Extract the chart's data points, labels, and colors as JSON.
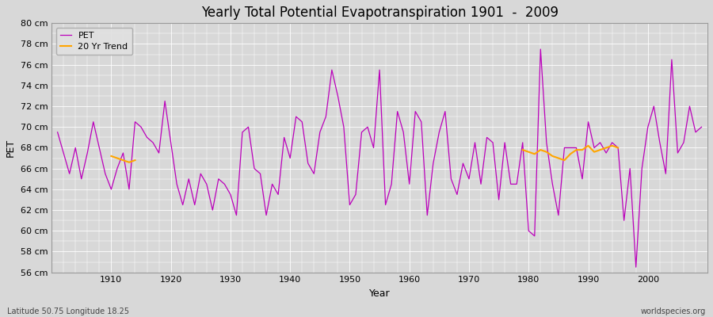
{
  "title": "Yearly Total Potential Evapotranspiration 1901  -  2009",
  "xlabel": "Year",
  "ylabel": "PET",
  "subtitle_left": "Latitude 50.75 Longitude 18.25",
  "subtitle_right": "worldspecies.org",
  "ylim": [
    56,
    80
  ],
  "xlim_left": 1900,
  "xlim_right": 2010,
  "bg_color": "#d8d8d8",
  "plot_bg_color": "#d8d8d8",
  "grid_color": "#c0c0c0",
  "pet_color": "#bb00bb",
  "trend_color": "#ffa500",
  "years": [
    1901,
    1902,
    1903,
    1904,
    1905,
    1906,
    1907,
    1908,
    1909,
    1910,
    1911,
    1912,
    1913,
    1914,
    1915,
    1916,
    1917,
    1918,
    1919,
    1920,
    1921,
    1922,
    1923,
    1924,
    1925,
    1926,
    1927,
    1928,
    1929,
    1930,
    1931,
    1932,
    1933,
    1934,
    1935,
    1936,
    1937,
    1938,
    1939,
    1940,
    1941,
    1942,
    1943,
    1944,
    1945,
    1946,
    1947,
    1948,
    1949,
    1950,
    1951,
    1952,
    1953,
    1954,
    1955,
    1956,
    1957,
    1958,
    1959,
    1960,
    1961,
    1962,
    1963,
    1964,
    1965,
    1966,
    1967,
    1968,
    1969,
    1970,
    1971,
    1972,
    1973,
    1974,
    1975,
    1976,
    1977,
    1978,
    1979,
    1980,
    1981,
    1982,
    1983,
    1984,
    1985,
    1986,
    1987,
    1988,
    1989,
    1990,
    1991,
    1992,
    1993,
    1994,
    1995,
    1996,
    1997,
    1998,
    1999,
    2000,
    2001,
    2002,
    2003,
    2004,
    2005,
    2006,
    2007,
    2008,
    2009
  ],
  "pet_values": [
    69.5,
    67.5,
    65.5,
    68.0,
    65.0,
    67.5,
    70.5,
    68.0,
    65.5,
    64.0,
    66.0,
    67.5,
    64.0,
    70.5,
    70.0,
    69.0,
    68.5,
    67.5,
    72.5,
    68.5,
    64.5,
    62.5,
    65.0,
    62.5,
    65.5,
    64.5,
    62.0,
    65.0,
    64.5,
    63.5,
    61.5,
    69.5,
    70.0,
    66.0,
    65.5,
    61.5,
    64.5,
    63.5,
    69.0,
    67.0,
    71.0,
    70.5,
    66.5,
    65.5,
    69.5,
    71.0,
    75.5,
    73.0,
    70.0,
    62.5,
    63.5,
    69.5,
    70.0,
    68.0,
    75.5,
    62.5,
    64.5,
    71.5,
    69.5,
    64.5,
    71.5,
    70.5,
    61.5,
    66.5,
    69.5,
    71.5,
    65.0,
    63.5,
    66.5,
    65.0,
    68.5,
    64.5,
    69.0,
    68.5,
    63.0,
    68.5,
    64.5,
    64.5,
    68.5,
    60.0,
    59.5,
    77.5,
    68.5,
    64.5,
    61.5,
    68.0,
    68.0,
    68.0,
    65.0,
    70.5,
    68.0,
    68.5,
    67.5,
    68.5,
    68.0,
    61.0,
    66.0,
    56.5,
    66.0,
    70.0,
    72.0,
    68.5,
    65.5,
    76.5,
    67.5,
    68.5,
    72.0,
    69.5,
    70.0
  ],
  "trend_seg1_years": [
    1910,
    1911,
    1912,
    1913,
    1914
  ],
  "trend_seg1_values": [
    67.2,
    67.0,
    66.8,
    66.6,
    66.8
  ],
  "trend_seg2_years": [
    1979,
    1980,
    1981,
    1982,
    1983,
    1984,
    1985,
    1986,
    1987,
    1988,
    1989,
    1990,
    1991,
    1992,
    1993,
    1994,
    1995
  ],
  "trend_seg2_values": [
    67.8,
    67.6,
    67.4,
    67.8,
    67.6,
    67.2,
    67.0,
    66.8,
    67.4,
    67.8,
    67.8,
    68.2,
    67.6,
    67.8,
    68.0,
    68.2,
    68.0
  ],
  "ytick_labels": [
    "56 cm",
    "58 cm",
    "60 cm",
    "62 cm",
    "64 cm",
    "66 cm",
    "68 cm",
    "70 cm",
    "72 cm",
    "74 cm",
    "76 cm",
    "78 cm",
    "80 cm"
  ],
  "ytick_values": [
    56,
    58,
    60,
    62,
    64,
    66,
    68,
    70,
    72,
    74,
    76,
    78,
    80
  ],
  "xtick_values": [
    1910,
    1920,
    1930,
    1940,
    1950,
    1960,
    1970,
    1980,
    1990,
    2000
  ]
}
